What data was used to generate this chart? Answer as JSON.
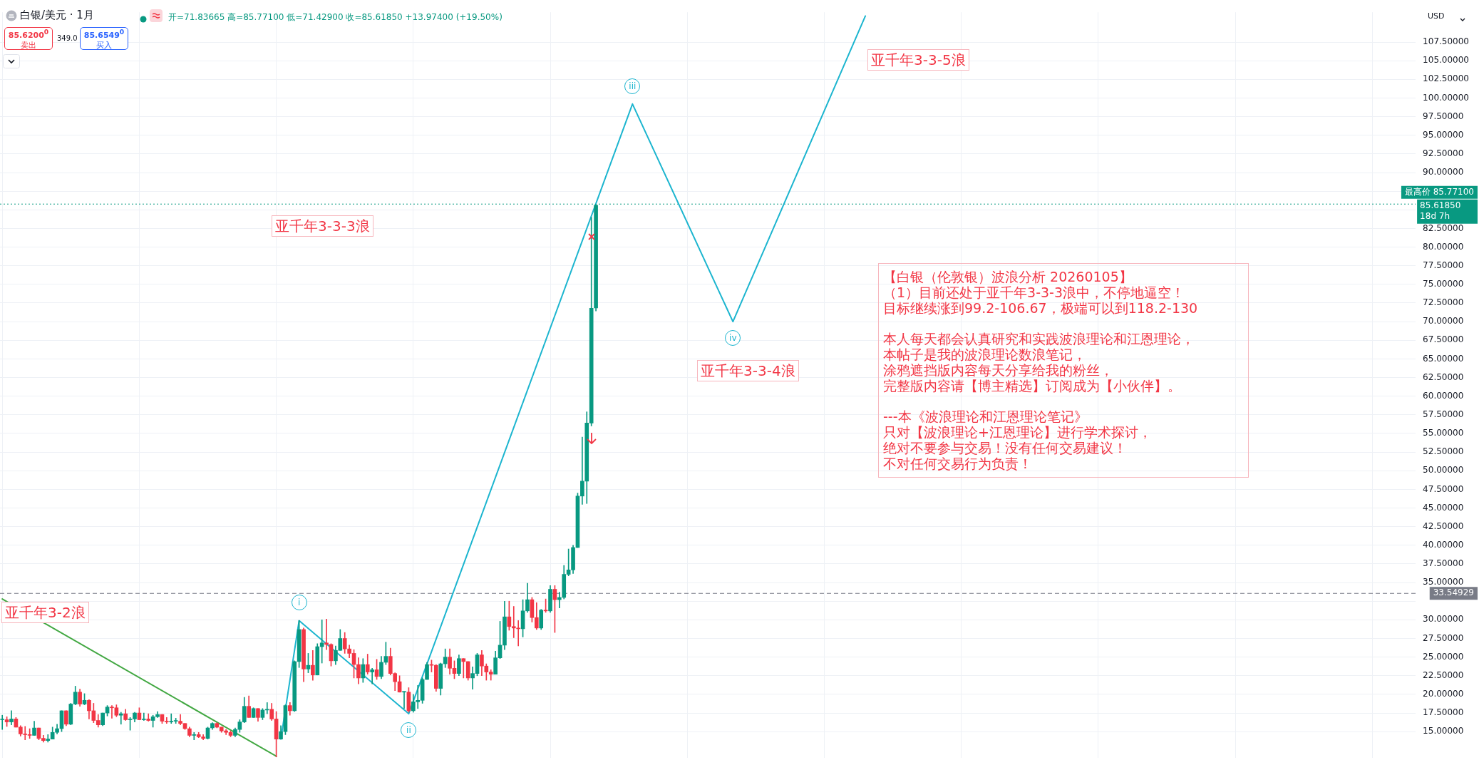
{
  "chart_data": {
    "type": "candlestick",
    "title": "白银/美元 · 1月",
    "categories": [
      null,
      null,
      null,
      null,
      null,
      null,
      null,
      null,
      null,
      null,
      null,
      null,
      null,
      null,
      null,
      null,
      null,
      null,
      null,
      null,
      null,
      null,
      null,
      null,
      null,
      null,
      null,
      null,
      null,
      null,
      null,
      null,
      null,
      null,
      null,
      null,
      null,
      null,
      null,
      null,
      null,
      null,
      null,
      null,
      null,
      null,
      null,
      null,
      null,
      null,
      null,
      null,
      null,
      null,
      null,
      null,
      null,
      null,
      null,
      null,
      null,
      null,
      null,
      null,
      null,
      null,
      null,
      null,
      null,
      null,
      null,
      null,
      null,
      null,
      null,
      null,
      null,
      null,
      null,
      null,
      null,
      null,
      null,
      null,
      null,
      null,
      null,
      null,
      null,
      null,
      null,
      null,
      null,
      null,
      null,
      null,
      null,
      null,
      null,
      null,
      null,
      null,
      null,
      null,
      null,
      null,
      null,
      null,
      null,
      null,
      null,
      null,
      null,
      null,
      null,
      null,
      null,
      null,
      null,
      null,
      null,
      null,
      null,
      null,
      null,
      null,
      null,
      null,
      null,
      null,
      null,
      null,
      null,
      null,
      null,
      null,
      null,
      null,
      null,
      null,
      null,
      null,
      null,
      null,
      null,
      null,
      null,
      null,
      null,
      null,
      null,
      null,
      null,
      null,
      null,
      null,
      null,
      null,
      null,
      null,
      null,
      null,
      null,
      null,
      null,
      null,
      null,
      null,
      null,
      null,
      null,
      null,
      null,
      null,
      null,
      null,
      null,
      null,
      null,
      null,
      null,
      null,
      null,
      null,
      null,
      null,
      null,
      null,
      null,
      null,
      null,
      null,
      null,
      null,
      null,
      null,
      null,
      null,
      null,
      null,
      null,
      null,
      null,
      null,
      null,
      null,
      null,
      null,
      null,
      null,
      null,
      null,
      null,
      null,
      null,
      null,
      null,
      null,
      null,
      null,
      null,
      null,
      null,
      null,
      null,
      null,
      null,
      null,
      null,
      null,
      null,
      null,
      null,
      null,
      null,
      null,
      null,
      null,
      null,
      null,
      null,
      null,
      null,
      null,
      null,
      null,
      null,
      null,
      null,
      null,
      null,
      null,
      null,
      null,
      null,
      null,
      null,
      null,
      null,
      null,
      null,
      null,
      null,
      null,
      null,
      null,
      null,
      null,
      null,
      null,
      null,
      null,
      null,
      null,
      null,
      null,
      null,
      null,
      null,
      null,
      null,
      null,
      null,
      null,
      null,
      null,
      null,
      null,
      null,
      null,
      null,
      null,
      null,
      null,
      null,
      null,
      null,
      null,
      null,
      null,
      null,
      null,
      null,
      null,
      null,
      null,
      null,
      null,
      null,
      null
    ],
    "ohlc": [
      [
        16.6,
        17.2,
        15.3,
        16.6
      ],
      [
        16.6,
        17.0,
        15.7,
        16.3
      ],
      [
        16.3,
        17.8,
        15.9,
        16.7
      ],
      [
        16.7,
        16.9,
        15.6,
        15.6
      ],
      [
        15.6,
        15.8,
        14.4,
        14.7
      ],
      [
        14.7,
        15.7,
        13.9,
        14.6
      ],
      [
        14.6,
        15.4,
        14.1,
        14.5
      ],
      [
        14.5,
        16.4,
        14.5,
        15.5
      ],
      [
        15.5,
        15.5,
        13.9,
        14.1
      ],
      [
        14.1,
        14.5,
        13.6,
        13.8
      ],
      [
        13.8,
        14.6,
        13.6,
        14.0
      ],
      [
        14.0,
        15.6,
        14.0,
        14.9
      ],
      [
        14.9,
        16.0,
        14.7,
        15.4
      ],
      [
        15.4,
        17.8,
        15.0,
        17.8
      ],
      [
        17.8,
        17.8,
        15.8,
        16.0
      ],
      [
        16.0,
        18.8,
        15.9,
        18.7
      ],
      [
        18.7,
        21.1,
        18.6,
        20.3
      ],
      [
        20.3,
        20.7,
        18.4,
        18.7
      ],
      [
        18.7,
        20.1,
        18.6,
        19.2
      ],
      [
        19.2,
        19.3,
        16.7,
        17.8
      ],
      [
        17.8,
        18.8,
        16.2,
        16.5
      ],
      [
        16.5,
        17.3,
        15.6,
        15.9
      ],
      [
        15.9,
        17.5,
        15.8,
        17.5
      ],
      [
        17.5,
        18.5,
        17.1,
        18.3
      ],
      [
        18.3,
        18.5,
        16.8,
        18.2
      ],
      [
        18.2,
        18.6,
        17.0,
        17.2
      ],
      [
        17.2,
        17.6,
        16.0,
        17.4
      ],
      [
        17.4,
        18.0,
        16.5,
        16.6
      ],
      [
        16.6,
        16.9,
        15.2,
        16.7
      ],
      [
        16.7,
        17.6,
        16.3,
        17.5
      ],
      [
        17.5,
        18.2,
        16.6,
        16.6
      ],
      [
        16.6,
        17.5,
        16.5,
        16.7
      ],
      [
        16.7,
        17.4,
        16.4,
        16.5
      ],
      [
        16.5,
        17.2,
        15.6,
        17.0
      ],
      [
        17.0,
        17.7,
        16.9,
        17.3
      ],
      [
        17.3,
        17.3,
        16.1,
        16.4
      ],
      [
        16.4,
        16.9,
        16.1,
        16.3
      ],
      [
        16.3,
        17.4,
        16.1,
        16.4
      ],
      [
        16.4,
        16.8,
        16.1,
        16.4
      ],
      [
        16.4,
        17.3,
        15.9,
        16.1
      ],
      [
        16.1,
        16.1,
        15.3,
        15.4
      ],
      [
        15.4,
        15.6,
        14.3,
        14.5
      ],
      [
        14.5,
        14.9,
        13.9,
        14.6
      ],
      [
        14.6,
        14.9,
        14.2,
        14.3
      ],
      [
        14.3,
        14.6,
        13.9,
        14.1
      ],
      [
        14.1,
        15.6,
        14.0,
        15.5
      ],
      [
        15.5,
        16.2,
        15.3,
        16.1
      ],
      [
        16.1,
        16.2,
        15.5,
        15.6
      ],
      [
        15.6,
        15.6,
        14.9,
        15.1
      ],
      [
        15.1,
        15.3,
        14.6,
        14.9
      ],
      [
        14.9,
        15.1,
        14.3,
        14.5
      ],
      [
        14.5,
        15.5,
        14.3,
        15.3
      ],
      [
        15.3,
        16.6,
        14.9,
        16.3
      ],
      [
        16.3,
        19.6,
        16.2,
        18.4
      ],
      [
        18.4,
        19.8,
        16.9,
        16.9
      ],
      [
        16.9,
        18.2,
        16.9,
        18.1
      ],
      [
        18.1,
        18.1,
        16.4,
        16.9
      ],
      [
        16.9,
        18.1,
        16.6,
        17.9
      ],
      [
        17.9,
        18.9,
        17.4,
        18.0
      ],
      [
        18.0,
        18.8,
        16.5,
        16.7
      ],
      [
        16.7,
        17.7,
        11.6,
        14.0
      ],
      [
        14.0,
        15.8,
        14.0,
        15.0
      ],
      [
        15.0,
        18.6,
        14.6,
        18.5
      ],
      [
        18.5,
        18.9,
        17.2,
        17.8
      ],
      [
        17.8,
        24.5,
        17.7,
        24.4
      ],
      [
        24.4,
        29.9,
        23.6,
        28.7
      ],
      [
        28.7,
        28.9,
        21.7,
        23.4
      ],
      [
        23.4,
        25.5,
        22.9,
        23.9
      ],
      [
        23.9,
        25.9,
        21.9,
        22.6
      ],
      [
        22.6,
        26.8,
        22.6,
        26.4
      ],
      [
        26.4,
        30.0,
        24.2,
        26.9
      ],
      [
        26.9,
        30.1,
        26.0,
        26.7
      ],
      [
        26.7,
        26.8,
        23.8,
        24.5
      ],
      [
        24.5,
        26.5,
        24.0,
        25.9
      ],
      [
        25.9,
        28.7,
        25.9,
        27.5
      ],
      [
        27.5,
        28.3,
        25.5,
        26.1
      ],
      [
        26.1,
        26.6,
        24.9,
        25.5
      ],
      [
        25.5,
        26.0,
        22.2,
        24.0
      ],
      [
        24.0,
        24.9,
        21.4,
        22.2
      ],
      [
        22.2,
        24.8,
        21.6,
        24.0
      ],
      [
        24.0,
        25.4,
        22.7,
        23.0
      ],
      [
        23.0,
        23.5,
        21.4,
        23.3
      ],
      [
        23.3,
        24.7,
        22.0,
        22.4
      ],
      [
        22.4,
        25.1,
        22.1,
        24.3
      ],
      [
        24.3,
        27.0,
        24.0,
        25.1
      ],
      [
        25.1,
        26.2,
        22.6,
        22.8
      ],
      [
        22.8,
        22.9,
        20.5,
        21.7
      ],
      [
        21.7,
        22.5,
        20.3,
        20.3
      ],
      [
        20.3,
        20.4,
        18.1,
        20.3
      ],
      [
        20.3,
        20.9,
        17.6,
        17.8
      ],
      [
        17.8,
        20.0,
        17.6,
        19.0
      ],
      [
        19.0,
        21.2,
        18.1,
        19.2
      ],
      [
        19.2,
        22.2,
        18.8,
        22.0
      ],
      [
        22.0,
        24.3,
        22.0,
        24.0
      ],
      [
        24.0,
        24.6,
        23.0,
        23.9
      ],
      [
        23.9,
        24.0,
        20.4,
        20.8
      ],
      [
        20.8,
        24.2,
        19.9,
        24.1
      ],
      [
        24.1,
        26.1,
        23.6,
        25.0
      ],
      [
        25.0,
        26.1,
        22.7,
        23.5
      ],
      [
        23.5,
        24.5,
        22.1,
        22.8
      ],
      [
        22.8,
        25.3,
        22.5,
        24.8
      ],
      [
        24.8,
        24.8,
        22.2,
        24.4
      ],
      [
        24.4,
        24.4,
        21.9,
        22.2
      ],
      [
        22.2,
        23.7,
        20.7,
        22.8
      ],
      [
        22.8,
        25.5,
        22.5,
        25.3
      ],
      [
        25.3,
        25.9,
        22.5,
        23.8
      ],
      [
        23.8,
        24.1,
        21.9,
        23.0
      ],
      [
        23.0,
        23.3,
        21.9,
        22.7
      ],
      [
        22.7,
        25.8,
        22.7,
        24.9
      ],
      [
        24.9,
        29.8,
        24.8,
        26.6
      ],
      [
        26.6,
        32.5,
        26.0,
        30.4
      ],
      [
        30.4,
        32.5,
        28.6,
        29.1
      ],
      [
        29.1,
        31.8,
        27.6,
        28.9
      ],
      [
        28.9,
        29.9,
        26.5,
        28.8
      ],
      [
        28.8,
        32.7,
        27.7,
        31.2
      ],
      [
        31.2,
        34.9,
        31.0,
        32.7
      ],
      [
        32.7,
        33.0,
        29.7,
        30.3
      ],
      [
        30.3,
        32.3,
        28.7,
        28.9
      ],
      [
        28.9,
        31.4,
        28.7,
        31.3
      ],
      [
        31.3,
        32.8,
        31.0,
        31.2
      ],
      [
        31.2,
        34.6,
        31.0,
        34.1
      ],
      [
        34.1,
        34.6,
        28.3,
        32.7
      ],
      [
        32.7,
        33.7,
        31.6,
        33.0
      ],
      [
        33.0,
        37.3,
        32.8,
        36.1
      ],
      [
        36.1,
        39.5,
        35.9,
        36.7
      ],
      [
        36.7,
        40.0,
        36.2,
        39.7
      ],
      [
        39.7,
        47.0,
        39.7,
        46.6
      ],
      [
        46.6,
        54.5,
        45.5,
        48.6
      ],
      [
        48.6,
        57.9,
        45.6,
        56.4
      ],
      [
        56.4,
        84.0,
        56.0,
        71.8
      ],
      [
        71.83665,
        85.771,
        71.429,
        85.6185
      ],
      null,
      null,
      null,
      null,
      null,
      null,
      null,
      null,
      null,
      null,
      null,
      null,
      null,
      null,
      null,
      null,
      null,
      null,
      null,
      null,
      null,
      null,
      null,
      null,
      null,
      null,
      null,
      null,
      null,
      null,
      null,
      null,
      null,
      null,
      null,
      null,
      null,
      null,
      null,
      null,
      null,
      null,
      null,
      null,
      null,
      null,
      null,
      null,
      null,
      null,
      null,
      null,
      null,
      null,
      null,
      null,
      null,
      null,
      null,
      null,
      null,
      null,
      null,
      null,
      null,
      null,
      null,
      null,
      null,
      null,
      null,
      null,
      null,
      null,
      null,
      null,
      null,
      null,
      null,
      null,
      null,
      null,
      null,
      null,
      null,
      null,
      null,
      null,
      null,
      null,
      null,
      null,
      null,
      null,
      null,
      null,
      null,
      null,
      null,
      null,
      null,
      null,
      null,
      null,
      null,
      null,
      null,
      null,
      null,
      null,
      null,
      null,
      null,
      null,
      null,
      null,
      null,
      null,
      null,
      null,
      null,
      null,
      null,
      null,
      null,
      null,
      null,
      null,
      null,
      null,
      null,
      null,
      null,
      null,
      null,
      null,
      null,
      null,
      null,
      null,
      null,
      null,
      null,
      null,
      null,
      null,
      null,
      null,
      null,
      null,
      null,
      null,
      null,
      null,
      null,
      null,
      null,
      null,
      null,
      null,
      null,
      null,
      null,
      null,
      null,
      null,
      null,
      null,
      null,
      null,
      null,
      null,
      null,
      null,
      null,
      null,
      null,
      null,
      null
    ],
    "series": [
      {
        "type": "line",
        "color": "#43a843",
        "values": [
          32.8,
          null,
          null,
          null,
          null,
          null,
          null,
          null,
          null,
          null,
          null,
          null,
          null,
          null,
          null,
          null,
          null,
          null,
          null,
          null,
          null,
          null,
          null,
          null,
          null,
          null,
          null,
          null,
          null,
          null,
          null,
          null,
          null,
          null,
          null,
          null,
          null,
          null,
          null,
          null,
          null,
          null,
          null,
          null,
          null,
          null,
          null,
          null,
          null,
          null,
          null,
          null,
          null,
          null,
          null,
          null,
          null,
          null,
          null,
          null,
          11.7,
          null,
          null,
          null,
          null,
          null,
          null,
          null,
          null,
          null,
          null,
          null,
          null,
          null,
          null,
          null,
          null,
          null,
          null,
          null,
          null,
          null,
          null,
          null,
          null,
          null,
          null,
          null,
          null,
          null,
          null,
          null,
          null,
          null,
          null,
          null,
          null,
          null,
          null,
          null,
          null,
          null,
          null,
          null,
          null,
          null,
          null,
          null,
          null,
          null,
          null,
          null,
          null,
          null,
          null,
          null,
          null,
          null,
          null,
          null,
          null,
          null,
          null,
          null,
          null,
          null,
          null,
          null,
          null,
          null,
          null,
          null,
          null,
          null,
          null,
          null,
          null,
          null,
          null,
          null,
          null,
          null,
          null,
          null,
          null,
          null,
          null,
          null,
          null,
          null,
          null,
          null,
          null,
          null,
          null,
          null,
          null,
          null,
          null,
          null,
          null,
          null,
          null,
          null,
          null,
          null,
          null,
          null,
          null,
          null,
          null,
          null,
          null,
          null,
          null,
          null,
          null,
          null,
          null,
          null,
          null,
          null,
          null,
          null,
          null,
          null,
          null,
          null,
          null,
          null,
          null,
          null,
          null,
          null,
          null,
          null,
          null,
          null,
          null,
          null,
          null,
          null,
          null,
          null,
          null,
          null,
          null,
          null,
          null,
          null,
          null,
          null,
          null,
          null,
          null,
          null,
          null,
          null,
          null,
          null,
          null,
          null,
          null,
          null,
          null,
          null,
          null,
          null,
          null,
          null,
          null,
          null,
          null,
          null,
          null,
          null,
          null,
          null,
          null,
          null,
          null,
          null,
          null,
          null,
          null,
          null,
          null,
          null,
          null,
          null,
          null,
          null,
          null,
          null,
          null,
          null,
          null,
          null,
          null,
          null,
          null,
          null,
          null,
          null,
          null,
          null,
          null,
          null,
          null,
          null,
          null,
          null,
          null,
          null,
          null,
          null,
          null,
          null,
          null,
          null,
          null,
          null,
          null,
          null,
          null,
          null,
          null,
          null,
          null,
          null,
          null,
          null,
          null,
          null,
          null,
          null,
          null,
          null,
          null,
          null,
          null,
          null,
          null,
          null,
          null,
          null,
          null,
          null,
          null,
          null
        ]
      },
      {
        "type": "line",
        "color": "#1cb5cf",
        "values": [
          null,
          null,
          null,
          null,
          null,
          null,
          null,
          null,
          null,
          null,
          null,
          null,
          null,
          null,
          null,
          null,
          null,
          null,
          null,
          null,
          null,
          null,
          null,
          null,
          null,
          null,
          null,
          null,
          null,
          null,
          null,
          null,
          null,
          null,
          null,
          null,
          null,
          null,
          null,
          null,
          null,
          null,
          null,
          null,
          null,
          null,
          null,
          null,
          null,
          null,
          null,
          null,
          null,
          null,
          null,
          null,
          null,
          null,
          null,
          null,
          null,
          14.0,
          null,
          null,
          null,
          29.9,
          null,
          null,
          null,
          null,
          null,
          null,
          null,
          null,
          null,
          null,
          null,
          null,
          null,
          null,
          null,
          null,
          null,
          null,
          null,
          null,
          null,
          null,
          null,
          17.4,
          null,
          null,
          null,
          null,
          null,
          null,
          null,
          null,
          null,
          null,
          null,
          null,
          null,
          null,
          null,
          null,
          null,
          null,
          null,
          null,
          null,
          null,
          null,
          null,
          null,
          null,
          null,
          null,
          null,
          null,
          null,
          null,
          null,
          null,
          null,
          null,
          null,
          null,
          null,
          null,
          null,
          null,
          null,
          null,
          null,
          null,
          null,
          null,
          99.2,
          null,
          null,
          null,
          null,
          null,
          null,
          null,
          null,
          null,
          null,
          null,
          null,
          null,
          null,
          null,
          null,
          null,
          null,
          null,
          null,
          null,
          70.0,
          null,
          null,
          null,
          null,
          null,
          null,
          null,
          null,
          null,
          null,
          null,
          null,
          null,
          null,
          null,
          null,
          null,
          null,
          null,
          null,
          null,
          null,
          null,
          null,
          null,
          null,
          null,
          null,
          111.0,
          null,
          null,
          null,
          null,
          null,
          null,
          null,
          null,
          null,
          null,
          null,
          null,
          null,
          null,
          null,
          null,
          null,
          null,
          null,
          null,
          null,
          null,
          null,
          null,
          null,
          null,
          null,
          null,
          null,
          null,
          null,
          null,
          null,
          null,
          null,
          null,
          null,
          null,
          null,
          null,
          null,
          null,
          null,
          null,
          null,
          null,
          null,
          null,
          null,
          null,
          null,
          null,
          null,
          null,
          null,
          null,
          null,
          null,
          null,
          null,
          null,
          null,
          null,
          null,
          null,
          null,
          null,
          null,
          null,
          null,
          null,
          null,
          null,
          null,
          null,
          null,
          null,
          null,
          null,
          null,
          null,
          null,
          null,
          null,
          null,
          null,
          null,
          null,
          null,
          null,
          null,
          null,
          null,
          null,
          null,
          null,
          null,
          null,
          null,
          null,
          null,
          null,
          null,
          null,
          null,
          null,
          null,
          null,
          null,
          null,
          null,
          null,
          null,
          null,
          null,
          null,
          null,
          null,
          null,
          null
        ]
      }
    ],
    "ylim": [
      11.5,
      111.5
    ],
    "yticks": [
      {
        "value": 15,
        "label": "15.00000"
      },
      {
        "value": 17.5,
        "label": "17.50000"
      },
      {
        "value": 20,
        "label": "20.00000"
      },
      {
        "value": 22.5,
        "label": "22.50000"
      },
      {
        "value": 25,
        "label": "25.00000"
      },
      {
        "value": 27.5,
        "label": "27.50000"
      },
      {
        "value": 30,
        "label": "30.00000"
      },
      {
        "value": 32.5,
        "label": null
      },
      {
        "value": 35,
        "label": "35.00000"
      },
      {
        "value": 37.5,
        "label": "37.50000"
      },
      {
        "value": 40,
        "label": "40.00000"
      },
      {
        "value": 42.5,
        "label": "42.50000"
      },
      {
        "value": 45,
        "label": "45.00000"
      },
      {
        "value": 47.5,
        "label": "47.50000"
      },
      {
        "value": 50,
        "label": "50.00000"
      },
      {
        "value": 52.5,
        "label": "52.50000"
      },
      {
        "value": 55,
        "label": "55.00000"
      },
      {
        "value": 57.5,
        "label": "57.50000"
      },
      {
        "value": 60,
        "label": "60.00000"
      },
      {
        "value": 62.5,
        "label": "62.50000"
      },
      {
        "value": 65,
        "label": "65.00000"
      },
      {
        "value": 67.5,
        "label": "67.50000"
      },
      {
        "value": 70,
        "label": "70.00000"
      },
      {
        "value": 72.5,
        "label": "72.50000"
      },
      {
        "value": 75,
        "label": "75.00000"
      },
      {
        "value": 77.5,
        "label": "77.50000"
      },
      {
        "value": 80,
        "label": "80.00000"
      },
      {
        "value": 82.5,
        "label": "82.50000"
      },
      {
        "value": 85,
        "label": null
      },
      {
        "value": 87.5,
        "label": null
      },
      {
        "value": 90,
        "label": "90.00000"
      },
      {
        "value": 92.5,
        "label": "92.50000"
      },
      {
        "value": 95,
        "label": "95.00000"
      },
      {
        "value": 97.5,
        "label": "97.50000"
      },
      {
        "value": 100,
        "label": "100.00000"
      },
      {
        "value": 102.5,
        "label": "102.50000"
      },
      {
        "value": 105,
        "label": "105.00000"
      },
      {
        "value": 107.5,
        "label": "107.50000"
      }
    ],
    "grid": true,
    "legend": false,
    "ref_lines": [
      {
        "axis": "y",
        "value": 85.771,
        "label": "最高价 85.77100",
        "color": "#089981",
        "line_style": "dotted"
      },
      {
        "axis": "y",
        "value": 33.54929,
        "label": "33.54929",
        "color": "#787b86",
        "line_style": "dashed"
      }
    ],
    "annotations": [
      "开=71.83665 高=85.77100 低=71.42900 收=85.61850 +13.97400 (+19.50%)",
      "85.6200$^{0}$",
      "卖出",
      "349.0",
      "85.6549$^{0}$",
      "买入",
      "USD",
      "i",
      "ii",
      "iii",
      "iv",
      "亚千年3-2浪",
      "亚千年3-3-3浪",
      "亚千年3-3-4浪",
      "亚千年3-3-5浪",
      "【白银（伦敦银）波浪分析 20260105】",
      "（1）目前还处于亚千年3-3-3浪中，不停地逼空！",
      "目标继续涨到99.2-106.67，极端可以到118.2-130",
      "本人每天都会认真研究和实践波浪理论和江恩理论，",
      "本帖子是我的波浪理论数浪笔记，",
      "涂鸦遮挡版内容每天分享给我的粉丝，",
      "完整版内容请【博主精选】订阅成为【小伙伴】。",
      "---本《波浪理论和江恩理论笔记》",
      "只对【波浪理论+江恩理论】进行学术探讨，",
      "绝对不要参与交易！没有任何交易建议！",
      "不对任何交易行为负责！",
      "85.61850",
      "18d 7h"
    ]
  }
}
